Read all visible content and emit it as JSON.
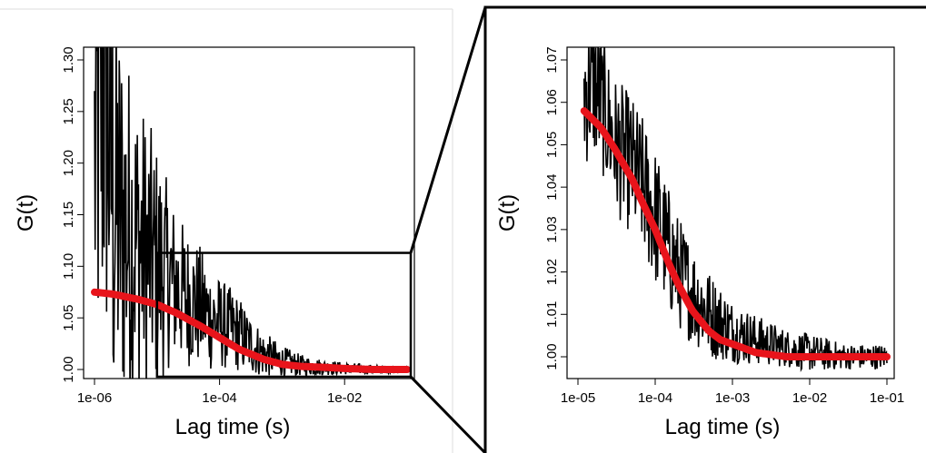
{
  "chart_data": [
    {
      "type": "line",
      "panel": "overview",
      "title": "",
      "xlabel": "Lag time (s)",
      "ylabel": "G(t)",
      "x_scale": "log",
      "xlim": [
        1e-06,
        0.1
      ],
      "ylim": [
        1.0,
        1.3
      ],
      "x_ticks": [
        1e-06,
        0.0001,
        0.01
      ],
      "x_tick_labels": [
        "1e-06",
        "1e-04",
        "1e-02"
      ],
      "y_ticks": [
        1.0,
        1.05,
        1.1,
        1.15,
        1.2,
        1.25,
        1.3
      ],
      "y_tick_labels": [
        "1.00",
        "1.05",
        "1.10",
        "1.15",
        "1.20",
        "1.25",
        "1.30"
      ],
      "grid": false,
      "legend": "none",
      "zoom_box": {
        "x": [
          1e-05,
          0.1
        ],
        "y": [
          0.993,
          1.113
        ]
      },
      "series": [
        {
          "role": "measured",
          "color": "#000000",
          "x": [
            1e-06,
            1.5e-06,
            2e-06,
            3e-06,
            5e-06,
            7e-06,
            1e-05,
            1.5e-05,
            2e-05,
            3e-05,
            5e-05,
            7e-05,
            0.0001,
            0.0002,
            0.0003,
            0.0005,
            0.001,
            0.002,
            0.005,
            0.01,
            0.03,
            0.1
          ],
          "y": [
            1.2,
            1.3,
            1.16,
            1.14,
            1.12,
            1.11,
            1.1,
            1.09,
            1.08,
            1.07,
            1.06,
            1.05,
            1.045,
            1.035,
            1.025,
            1.015,
            1.008,
            1.004,
            1.002,
            1.001,
            1.0,
            1.0
          ],
          "spread": [
            0.15,
            0.2,
            0.15,
            0.12,
            0.1,
            0.09,
            0.08,
            0.06,
            0.05,
            0.045,
            0.04,
            0.035,
            0.03,
            0.025,
            0.02,
            0.015,
            0.01,
            0.007,
            0.005,
            0.004,
            0.003,
            0.002
          ]
        },
        {
          "role": "fit",
          "color": "#e8141b",
          "x": [
            1e-06,
            2e-06,
            5e-06,
            1e-05,
            2e-05,
            5e-05,
            0.0001,
            0.0002,
            0.0005,
            0.001,
            0.002,
            0.005,
            0.01,
            0.03,
            0.1
          ],
          "y": [
            1.075,
            1.073,
            1.068,
            1.063,
            1.055,
            1.042,
            1.031,
            1.02,
            1.01,
            1.005,
            1.003,
            1.002,
            1.001,
            1.0,
            1.0
          ]
        }
      ]
    },
    {
      "type": "line",
      "panel": "zoom",
      "title": "",
      "xlabel": "Lag time (s)",
      "ylabel": "G(t)",
      "x_scale": "log",
      "xlim": [
        1e-05,
        0.1
      ],
      "ylim": [
        0.997,
        1.07
      ],
      "x_ticks": [
        1e-05,
        0.0001,
        0.001,
        0.01,
        0.1
      ],
      "x_tick_labels": [
        "1e-05",
        "1e-04",
        "1e-03",
        "1e-02",
        "1e-01"
      ],
      "y_ticks": [
        1.0,
        1.01,
        1.02,
        1.03,
        1.04,
        1.05,
        1.06,
        1.07
      ],
      "y_tick_labels": [
        "1.00",
        "1.01",
        "1.02",
        "1.03",
        "1.04",
        "1.05",
        "1.06",
        "1.07"
      ],
      "grid": false,
      "legend": "none",
      "series": [
        {
          "role": "measured",
          "color": "#000000",
          "x": [
            1.2e-05,
            1.5e-05,
            2e-05,
            3e-05,
            5e-05,
            7e-05,
            0.0001,
            0.00015,
            0.0002,
            0.0003,
            0.0005,
            0.0007,
            0.001,
            0.002,
            0.005,
            0.01,
            0.03,
            0.1
          ],
          "y": [
            1.062,
            1.065,
            1.06,
            1.05,
            1.045,
            1.04,
            1.033,
            1.025,
            1.02,
            1.015,
            1.01,
            1.008,
            1.006,
            1.004,
            1.002,
            1.001,
            1.0,
            1.0
          ],
          "spread": [
            0.012,
            0.012,
            0.011,
            0.011,
            0.011,
            0.011,
            0.011,
            0.01,
            0.009,
            0.008,
            0.007,
            0.006,
            0.005,
            0.004,
            0.003,
            0.003,
            0.002,
            0.002
          ]
        },
        {
          "role": "fit",
          "color": "#e8141b",
          "x": [
            1.2e-05,
            2e-05,
            3e-05,
            5e-05,
            7e-05,
            0.0001,
            0.00015,
            0.0002,
            0.0003,
            0.0005,
            0.0007,
            0.001,
            0.002,
            0.005,
            0.01,
            0.03,
            0.1
          ],
          "y": [
            1.058,
            1.054,
            1.049,
            1.042,
            1.036,
            1.03,
            1.022,
            1.017,
            1.011,
            1.006,
            1.004,
            1.003,
            1.001,
            1.0,
            1.0,
            1.0,
            1.0
          ]
        }
      ]
    }
  ]
}
